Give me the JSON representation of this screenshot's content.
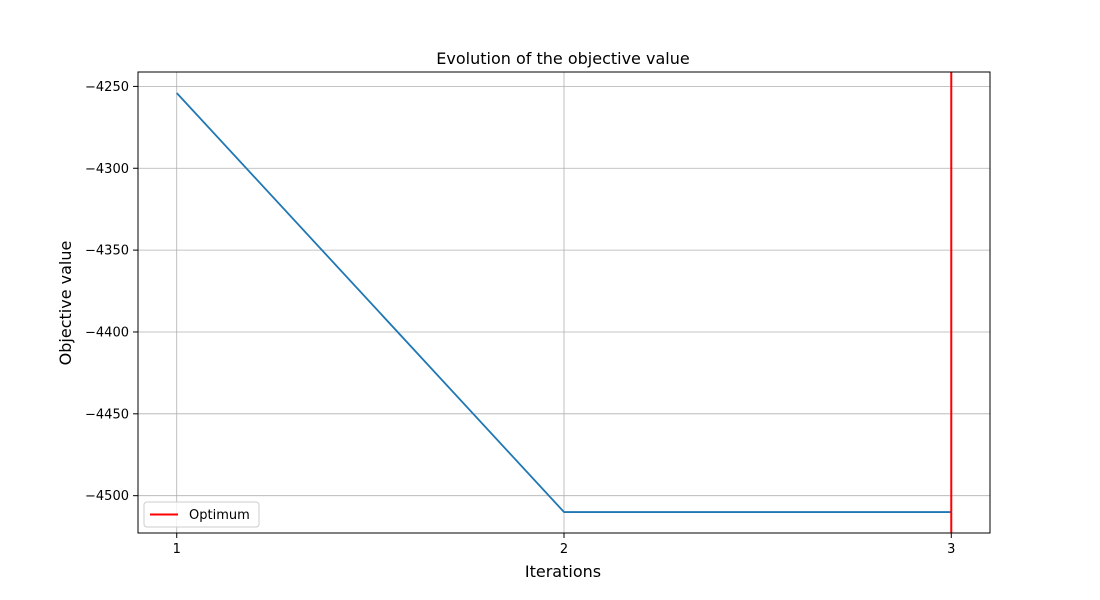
{
  "chart_data": {
    "type": "line",
    "title": "Evolution of the objective value",
    "xlabel": "Iterations",
    "ylabel": "Objective value",
    "x": [
      1,
      2,
      3
    ],
    "series": [
      {
        "values": [
          -4254,
          -4510,
          -4510
        ],
        "color": "#1f77b4"
      }
    ],
    "vlines": [
      {
        "name": "Optimum",
        "x": 3,
        "color": "#ff0000"
      }
    ],
    "xticks": [
      1,
      2,
      3
    ],
    "xtick_labels": [
      "1",
      "2",
      "3"
    ],
    "yticks": [
      -4250,
      -4300,
      -4350,
      -4400,
      -4450,
      -4500
    ],
    "ytick_labels": [
      "−4250",
      "−4300",
      "−4350",
      "−4400",
      "−4450",
      "−4500"
    ],
    "xlim": [
      0.9,
      3.1
    ],
    "ylim": [
      -4522.8,
      -4241.2
    ],
    "grid": true,
    "legend": {
      "position": "lower-left",
      "entries": [
        "Optimum"
      ]
    }
  }
}
